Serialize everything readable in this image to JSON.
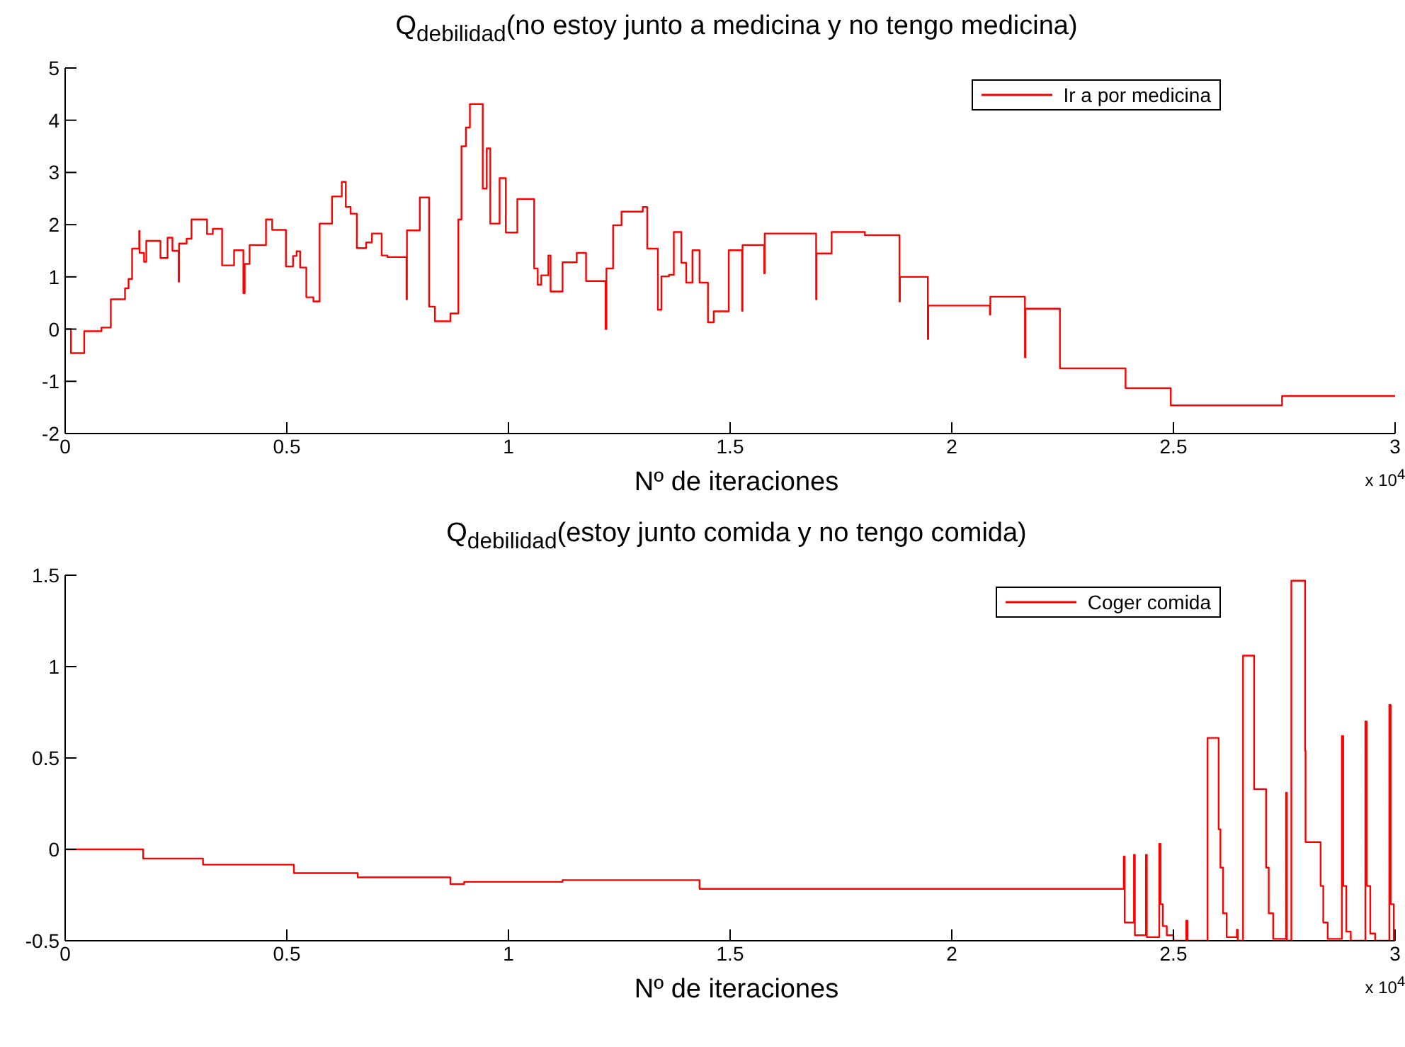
{
  "chart_data": [
    {
      "type": "step",
      "title": "Q$_{debilidad}$(no estoy junto a medicina y no tengo medicina)",
      "xlabel": "Nº de iteraciones",
      "annotations": [
        "x 10$^{4}$"
      ],
      "legend": "top right",
      "xlim": [
        0,
        3
      ],
      "xticks": [
        0,
        0.5,
        1,
        1.5,
        2,
        2.5,
        3
      ],
      "ylim": [
        -2,
        5
      ],
      "yticks": [
        -2,
        -1,
        0,
        1,
        2,
        3,
        4,
        5
      ],
      "x": [
        0,
        0.013,
        0.043,
        0.082,
        0.103,
        0.135,
        0.143,
        0.151,
        0.167,
        0.168,
        0.178,
        0.183,
        0.215,
        0.231,
        0.242,
        0.256,
        0.257,
        0.274,
        0.285,
        0.32,
        0.333,
        0.354,
        0.381,
        0.402,
        0.405,
        0.416,
        0.453,
        0.467,
        0.498,
        0.514,
        0.522,
        0.53,
        0.544,
        0.56,
        0.574,
        0.602,
        0.624,
        0.633,
        0.644,
        0.658,
        0.679,
        0.692,
        0.714,
        0.727,
        0.77,
        0.771,
        0.8,
        0.821,
        0.834,
        0.869,
        0.887,
        0.894,
        0.904,
        0.913,
        0.942,
        0.951,
        0.959,
        0.98,
        0.994,
        1.02,
        1.058,
        1.066,
        1.074,
        1.09,
        1.095,
        1.122,
        1.154,
        1.175,
        1.219,
        1.221,
        1.236,
        1.255,
        1.303,
        1.313,
        1.337,
        1.345,
        1.362,
        1.373,
        1.39,
        1.401,
        1.415,
        1.431,
        1.45,
        1.463,
        1.497,
        1.527,
        1.528,
        1.577,
        1.578,
        1.694,
        1.695,
        1.729,
        1.804,
        1.882,
        1.883,
        1.946,
        1.947,
        2.086,
        2.087,
        2.165,
        2.166,
        2.244,
        2.392,
        2.494,
        2.745,
        3
      ],
      "series": [
        {
          "name": "Ir a por medicina",
          "color": "#ff0000",
          "values": [
            0,
            -0.46,
            -0.04,
            0.03,
            0.57,
            0.78,
            0.96,
            1.54,
            1.88,
            1.46,
            1.29,
            1.69,
            1.36,
            1.75,
            1.5,
            0.91,
            1.64,
            1.73,
            2.1,
            1.82,
            1.92,
            1.22,
            1.51,
            0.69,
            1.25,
            1.61,
            2.1,
            1.9,
            1.2,
            1.4,
            1.49,
            1.18,
            0.61,
            0.53,
            2.02,
            2.54,
            2.82,
            2.34,
            2.21,
            1.55,
            1.66,
            1.83,
            1.41,
            1.38,
            0.57,
            1.89,
            2.52,
            0.43,
            0.15,
            0.3,
            2.1,
            3.5,
            3.86,
            4.31,
            2.69,
            3.46,
            2.02,
            2.89,
            1.85,
            2.49,
            1.16,
            0.85,
            1.03,
            1.41,
            0.72,
            1.28,
            1.46,
            0.92,
            0,
            1.16,
            1.99,
            2.25,
            2.34,
            1.54,
            0.37,
            1.01,
            1.04,
            1.86,
            1.27,
            0.89,
            1.51,
            0.89,
            0.13,
            0.34,
            1.51,
            0.35,
            1.61,
            1.07,
            1.83,
            0.57,
            1.45,
            1.86,
            1.8,
            0.53,
            1,
            -0.19,
            0.45,
            0.28,
            0.62,
            -0.54,
            0.39,
            -0.75,
            -1.13,
            -1.46,
            -1.28,
            -1.28
          ]
        }
      ]
    },
    {
      "type": "step",
      "title": "Q$_{debilidad}$(estoy junto comida y no tengo comida)",
      "xlabel": "Nº de iteraciones",
      "annotations": [
        "x 10$^{4}$"
      ],
      "legend": "top right",
      "xlim": [
        0,
        3
      ],
      "xticks": [
        0,
        0.5,
        1,
        1.5,
        2,
        2.5,
        3
      ],
      "ylim": [
        -0.5,
        1.5
      ],
      "yticks": [
        -0.5,
        0,
        0.5,
        1,
        1.5
      ],
      "x": [
        0,
        0.176,
        0.311,
        0.516,
        0.66,
        0.869,
        0.9,
        1.122,
        1.431,
        2.388,
        2.39,
        2.411,
        2.413,
        2.438,
        2.44,
        2.468,
        2.471,
        2.476,
        2.485,
        2.5,
        2.529,
        2.532,
        2.577,
        2.602,
        2.606,
        2.612,
        2.62,
        2.643,
        2.645,
        2.657,
        2.682,
        2.709,
        2.715,
        2.725,
        2.754,
        2.756,
        2.766,
        2.797,
        2.798,
        2.832,
        2.838,
        2.848,
        2.88,
        2.883,
        2.89,
        2.9,
        2.933,
        2.936,
        2.944,
        2.955,
        2.987,
        2.99,
        2.997,
        3
      ],
      "series": [
        {
          "name": "Coger comida",
          "color": "#ff0000",
          "values": [
            0,
            -0.05,
            -0.084,
            -0.13,
            -0.153,
            -0.19,
            -0.178,
            -0.168,
            -0.216,
            -0.04,
            -0.4,
            -0.03,
            -0.47,
            -0.03,
            -0.48,
            0.03,
            -0.3,
            -0.42,
            -0.47,
            -0.5,
            -0.39,
            -0.5,
            0.61,
            0.11,
            -0.1,
            -0.35,
            -0.48,
            -0.44,
            -0.5,
            1.06,
            0.33,
            -0.1,
            -0.35,
            -0.49,
            0.31,
            -0.5,
            1.47,
            0.54,
            0.04,
            -0.2,
            -0.4,
            -0.49,
            0.62,
            -0.2,
            -0.45,
            -0.5,
            0.7,
            -0.2,
            -0.46,
            -0.5,
            0.79,
            -0.3,
            -0.5,
            -0.5
          ]
        }
      ]
    }
  ]
}
